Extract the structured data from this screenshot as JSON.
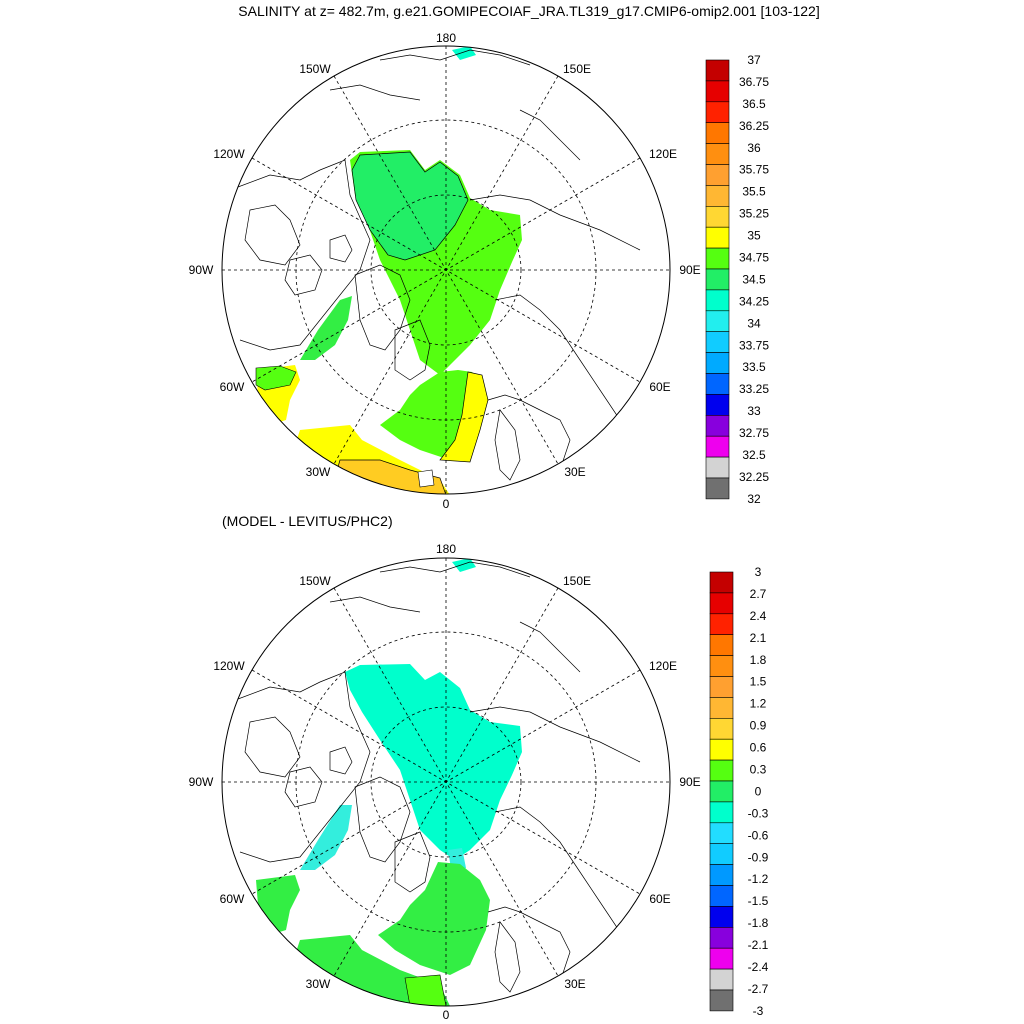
{
  "title": "SALINITY at z= 482.7m, g.e21.GOMIPECOIAF_JRA.TL319_g17.CMIP6-omip2.001 [103-122]",
  "subtitle": "(MODEL - LEVITUS/PHC2)",
  "colors": {
    "land_outline": "#000000",
    "grid": "#000000",
    "green_dark": "#33ee44",
    "green_light": "#55ff11",
    "yellow": "#ffff00",
    "orange_light": "#ffcc22",
    "cyan_light": "#00ffcc",
    "cyan": "#33eedd"
  },
  "maps": [
    {
      "id": "salinity",
      "lon_labels": {
        "lon_180": "180",
        "lon_150E": "150E",
        "lon_120E": "120E",
        "lon_90E": "90E",
        "lon_60E": "60E",
        "lon_30E": "30E",
        "lon_0": "0",
        "lon_30W": "30W",
        "lon_60W": "60W",
        "lon_90W": "90W",
        "lon_120W": "120W",
        "lon_150W": "150W"
      },
      "colorbar": {
        "labels": [
          "37",
          "36.75",
          "36.5",
          "36.25",
          "36",
          "35.75",
          "35.5",
          "35.25",
          "35",
          "34.75",
          "34.5",
          "34.25",
          "34",
          "33.75",
          "33.5",
          "33.25",
          "33",
          "32.75",
          "32.5",
          "32.25",
          "32"
        ],
        "colors": [
          "#c40000",
          "#e60000",
          "#ff2200",
          "#ff7700",
          "#ff8f10",
          "#ffa030",
          "#ffb733",
          "#ffd733",
          "#ffff00",
          "#55ff11",
          "#22ee66",
          "#00ffcc",
          "#22eeee",
          "#11ccff",
          "#00aaff",
          "#0066ff",
          "#0000ee",
          "#8800dd",
          "#ee00ee",
          "#d3d3d3",
          "#707070"
        ]
      }
    },
    {
      "id": "difference",
      "lon_labels": {
        "lon_180": "180",
        "lon_150E": "150E",
        "lon_120E": "120E",
        "lon_90E": "90E",
        "lon_60E": "60E",
        "lon_30E": "30E",
        "lon_0": "0",
        "lon_30W": "30W",
        "lon_60W": "60W",
        "lon_90W": "90W",
        "lon_120W": "120W",
        "lon_150W": "150W"
      },
      "colorbar": {
        "labels": [
          "3",
          "2.7",
          "2.4",
          "2.1",
          "1.8",
          "1.5",
          "1.2",
          "0.9",
          "0.6",
          "0.3",
          "0",
          "-0.3",
          "-0.6",
          "-0.9",
          "-1.2",
          "-1.5",
          "-1.8",
          "-2.1",
          "-2.4",
          "-2.7",
          "-3"
        ],
        "colors": [
          "#c40000",
          "#e60000",
          "#ff2200",
          "#ff7700",
          "#ff8f10",
          "#ffa030",
          "#ffb733",
          "#ffd733",
          "#ffff00",
          "#55ff11",
          "#22ee66",
          "#00ffcc",
          "#22ddff",
          "#11ccff",
          "#0099ff",
          "#0066ff",
          "#0000ee",
          "#8800dd",
          "#ee00ee",
          "#d3d3d3",
          "#707070"
        ]
      }
    }
  ]
}
